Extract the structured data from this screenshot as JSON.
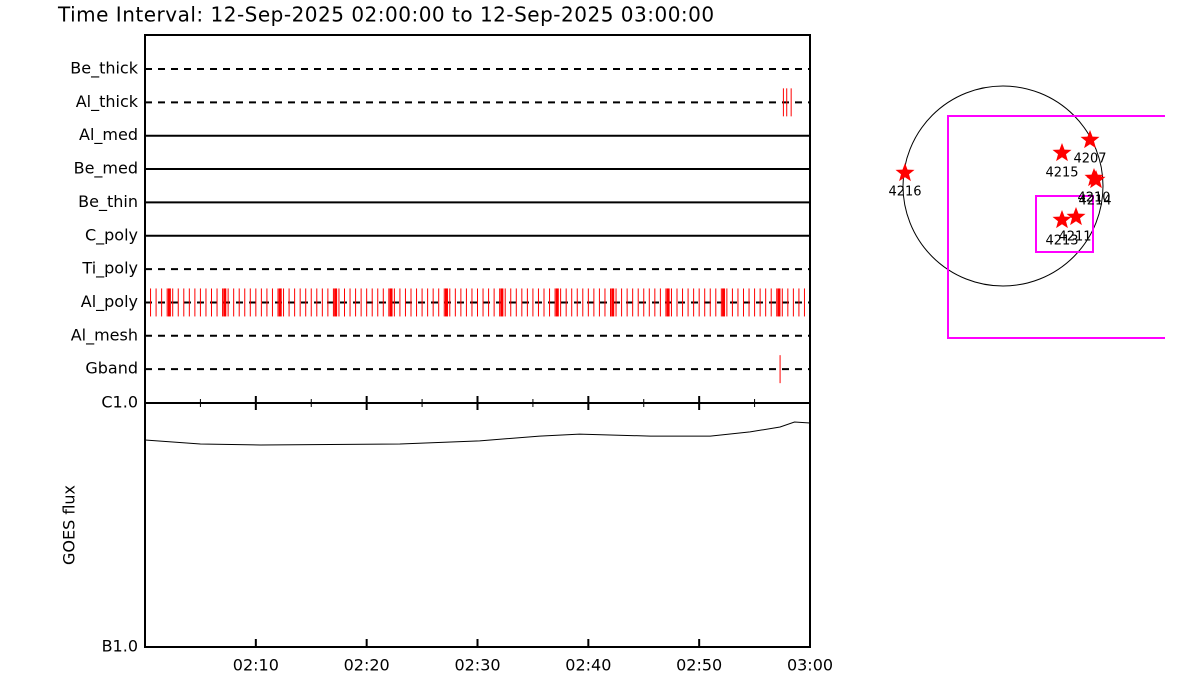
{
  "title": "Time Interval: 12-Sep-2025 02:00:00 to 12-Sep-2025 03:00:00",
  "timeline": {
    "xlim": [
      0,
      60
    ],
    "xticks": [
      {
        "value": 10,
        "label": "02:10"
      },
      {
        "value": 20,
        "label": "02:20"
      },
      {
        "value": 30,
        "label": "02:30"
      },
      {
        "value": 40,
        "label": "02:40"
      },
      {
        "value": 50,
        "label": "02:50"
      },
      {
        "value": 60,
        "label": "03:00"
      }
    ],
    "xminor": [
      5,
      15,
      25,
      35,
      45,
      55
    ],
    "event_color": "#ff0000",
    "filters": [
      {
        "name": "Be_thick",
        "style": "dashed",
        "events": []
      },
      {
        "name": "Al_thick",
        "style": "dashed",
        "events": [
          57.6,
          57.9,
          58.3
        ]
      },
      {
        "name": "Al_med",
        "style": "solid",
        "events": []
      },
      {
        "name": "Be_med",
        "style": "solid",
        "events": []
      },
      {
        "name": "Be_thin",
        "style": "solid",
        "events": []
      },
      {
        "name": "C_poly",
        "style": "solid",
        "events": []
      },
      {
        "name": "Ti_poly",
        "style": "dashed",
        "events": []
      },
      {
        "name": "Al_poly",
        "style": "dashed",
        "events": [
          0.5,
          1,
          1.5,
          2,
          2.5,
          3,
          3.5,
          4,
          4.5,
          5,
          5.5,
          6,
          6.5,
          7,
          7.5,
          8,
          8.5,
          9,
          9.5,
          10,
          10.5,
          11,
          11.5,
          12,
          12.5,
          13,
          13.5,
          14,
          14.5,
          15,
          15.5,
          16,
          16.5,
          17,
          17.5,
          18,
          18.5,
          19,
          19.5,
          20,
          20.5,
          21,
          21.5,
          22,
          22.5,
          23,
          23.5,
          24,
          24.5,
          25,
          25.5,
          26,
          26.5,
          27,
          27.5,
          28,
          28.5,
          29,
          29.5,
          30,
          30.5,
          31,
          31.5,
          32,
          32.5,
          33,
          33.5,
          34,
          34.5,
          35,
          35.5,
          36,
          36.5,
          37,
          37.5,
          38,
          38.5,
          39,
          39.5,
          40,
          40.5,
          41,
          41.5,
          42,
          42.5,
          43,
          43.5,
          44,
          44.5,
          45,
          45.5,
          46,
          46.5,
          47,
          47.5,
          48,
          48.5,
          49,
          49.5,
          50,
          50.5,
          51,
          51.5,
          52,
          52.5,
          53,
          53.5,
          54,
          54.5,
          55,
          55.5,
          56,
          56.5,
          57,
          57.5,
          58,
          58.5,
          59,
          59.5
        ],
        "long_events": [
          2.2,
          7.2,
          12.2,
          17.2,
          22.2,
          27.2,
          32.2,
          37.2,
          42.2,
          47.2,
          52.2,
          57.2
        ]
      },
      {
        "name": "Al_mesh",
        "style": "dashed",
        "events": []
      },
      {
        "name": "Gband",
        "style": "dashed",
        "events": [
          57.3
        ]
      }
    ]
  },
  "goes": {
    "type": "line",
    "log": true,
    "ylabel": "GOES flux",
    "ylim": [
      1e-07,
      1e-06
    ],
    "yticks": [
      {
        "value": 1e-07,
        "label": "B1.0"
      },
      {
        "value": 1e-06,
        "label": "C1.0"
      }
    ],
    "x": [
      0,
      5,
      10.4,
      23,
      30.2,
      35.6,
      39.2,
      45.6,
      51,
      54.6,
      57.3,
      58.6,
      60
    ],
    "values": [
      7.05e-07,
      6.79e-07,
      6.73e-07,
      6.79e-07,
      6.99e-07,
      7.32e-07,
      7.46e-07,
      7.32e-07,
      7.32e-07,
      7.61e-07,
      7.97e-07,
      8.36e-07,
      8.28e-07
    ]
  },
  "map": {
    "regions": [
      "4216",
      "4215",
      "4207",
      "4210",
      "4214",
      "4213",
      "4211"
    ]
  }
}
